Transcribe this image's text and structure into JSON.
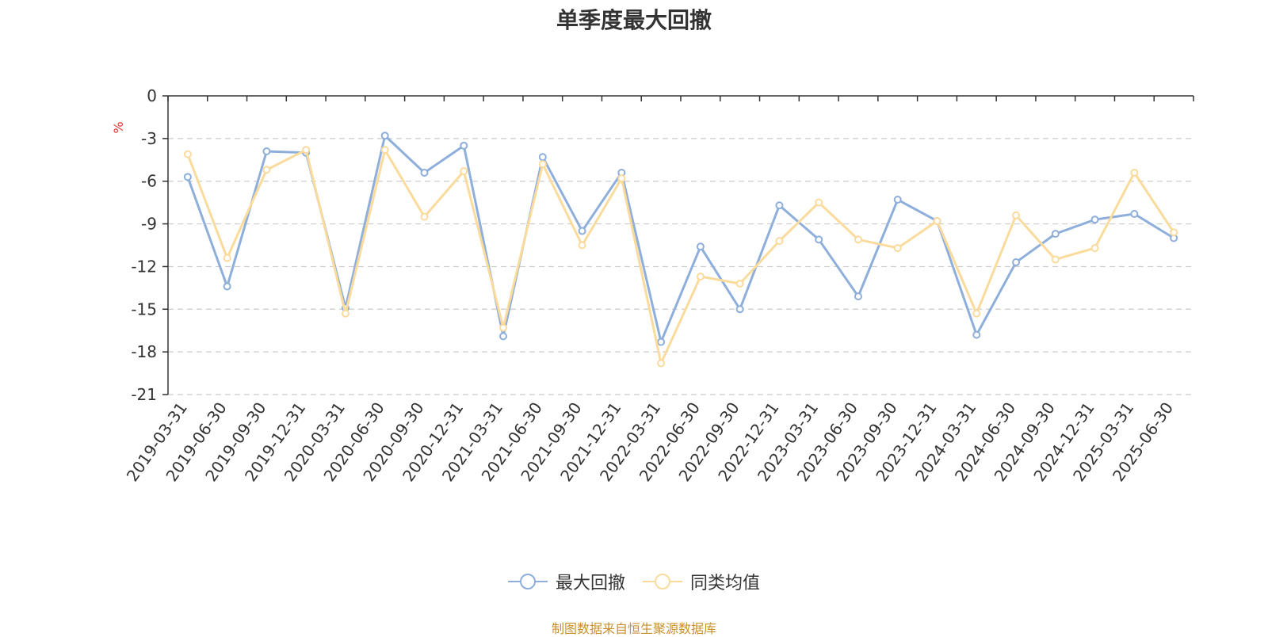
{
  "chart_data": {
    "type": "line",
    "title": "单季度最大回撤",
    "ylabel": "%",
    "ylim": [
      -21,
      0
    ],
    "yticks": [
      0,
      -3,
      -6,
      -9,
      -12,
      -15,
      -18,
      -21
    ],
    "grid": true,
    "legend_position": "bottom-center",
    "categories": [
      "2019-03-31",
      "2019-06-30",
      "2019-09-30",
      "2019-12-31",
      "2020-03-31",
      "2020-06-30",
      "2020-09-30",
      "2020-12-31",
      "2021-03-31",
      "2021-06-30",
      "2021-09-30",
      "2021-12-31",
      "2022-03-31",
      "2022-06-30",
      "2022-09-30",
      "2022-12-31",
      "2023-03-31",
      "2023-06-30",
      "2023-09-30",
      "2023-12-31",
      "2024-03-31",
      "2024-06-30",
      "2024-09-30",
      "2024-12-31",
      "2025-03-31",
      "2025-06-30"
    ],
    "series": [
      {
        "name": "最大回撤",
        "color": "#8eaedb",
        "values": [
          -5.7,
          -13.4,
          -3.9,
          -4.0,
          -14.9,
          -2.8,
          -5.4,
          -3.5,
          -16.9,
          -4.3,
          -9.5,
          -5.4,
          -17.3,
          -10.6,
          -15.0,
          -7.7,
          -10.1,
          -14.1,
          -7.3,
          -8.8,
          -16.8,
          -11.7,
          -9.7,
          -8.7,
          -8.3,
          -10.0
        ]
      },
      {
        "name": "同类均值",
        "color": "#fadb9b",
        "values": [
          -4.1,
          -11.4,
          -5.2,
          -3.8,
          -15.3,
          -3.8,
          -8.5,
          -5.3,
          -16.3,
          -4.8,
          -10.5,
          -5.8,
          -18.8,
          -12.7,
          -13.2,
          -10.2,
          -7.5,
          -10.1,
          -10.7,
          -8.8,
          -15.3,
          -8.4,
          -11.5,
          -10.7,
          -5.4,
          -9.6
        ]
      }
    ]
  },
  "source_text": "制图数据来自恒生聚源数据库"
}
